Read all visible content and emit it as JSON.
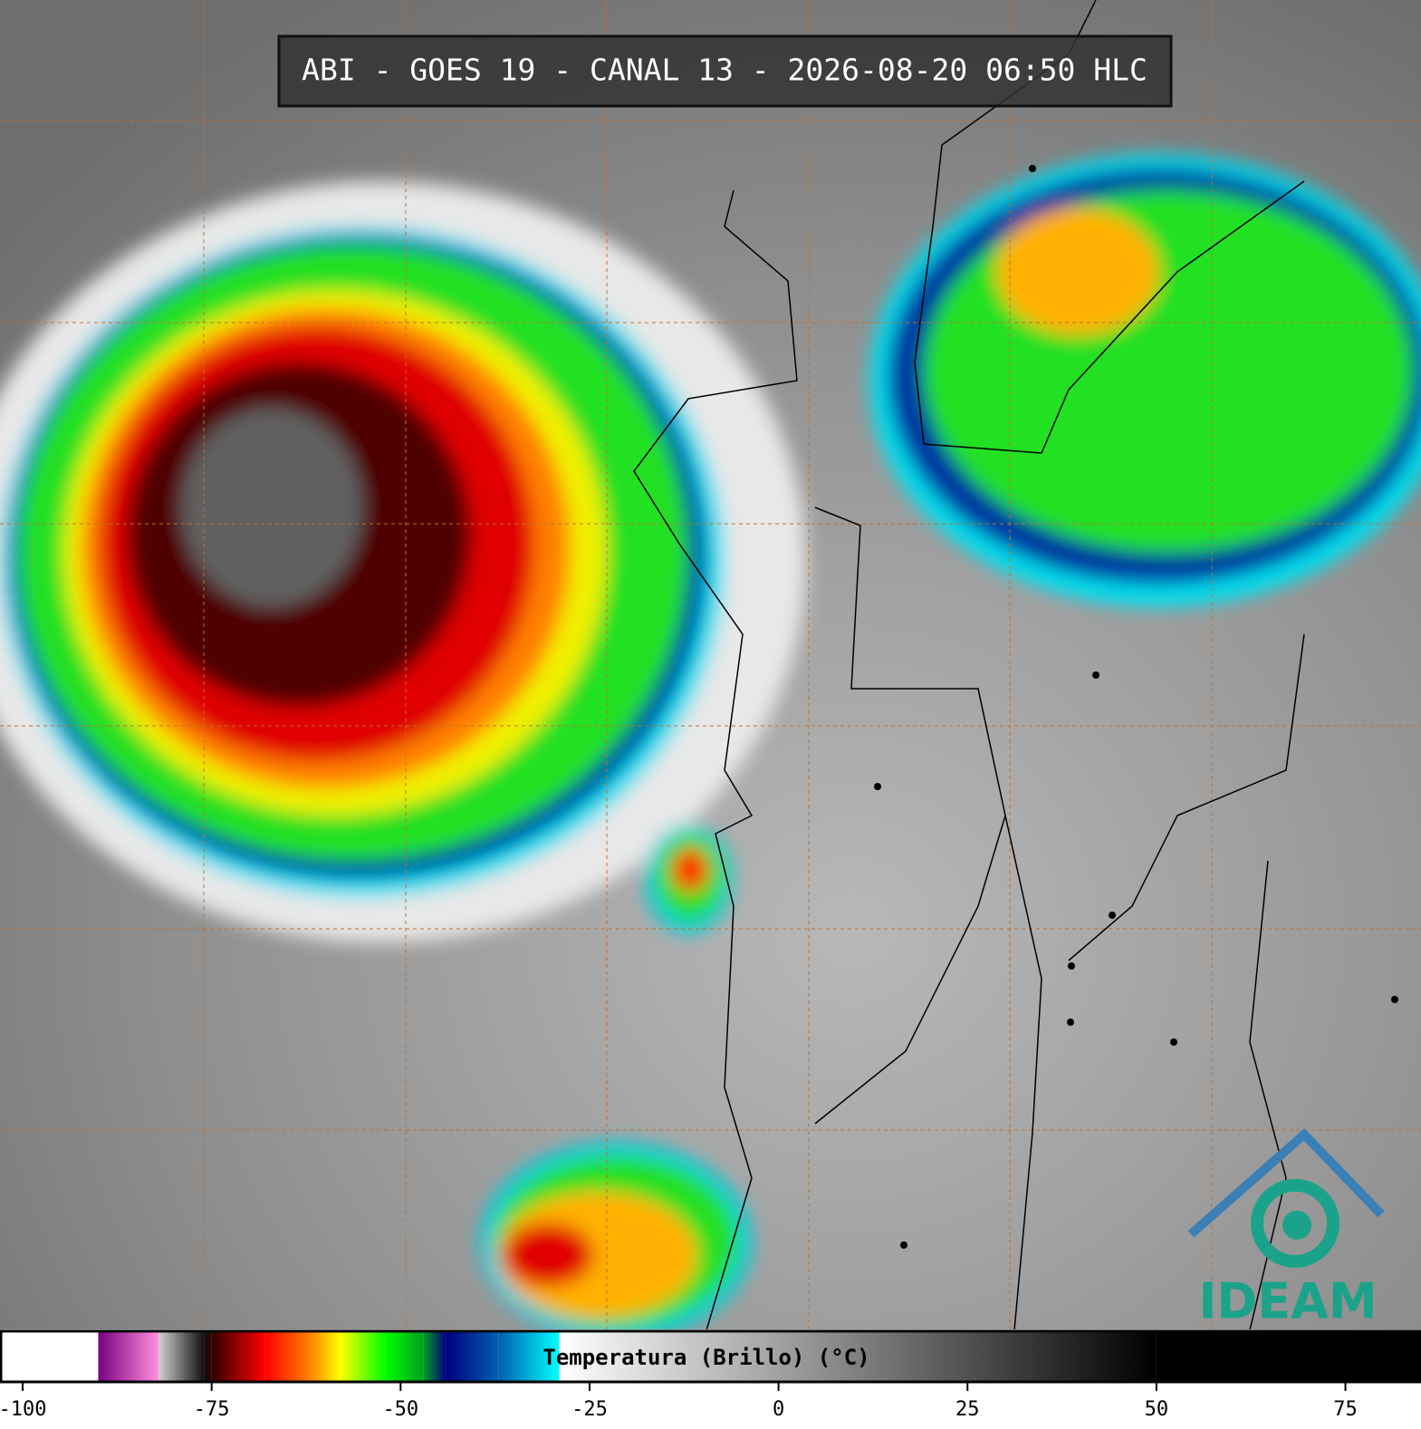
{
  "header": {
    "title": "ABI - GOES 19 - CANAL 13 - 2026-08-20 06:50 HLC"
  },
  "colorbar": {
    "label": "Temperatura (Brillo) (°C)",
    "range": [
      -103,
      85
    ],
    "ticks": [
      -100,
      -75,
      -50,
      -25,
      0,
      25,
      50,
      75
    ],
    "stops": [
      {
        "value": -103,
        "color": "#ffffff"
      },
      {
        "value": -90,
        "color": "#ffffff"
      },
      {
        "value": -90,
        "color": "#7a0080"
      },
      {
        "value": -82,
        "color": "#ff90e0"
      },
      {
        "value": -82,
        "color": "#d0d0d0"
      },
      {
        "value": -76,
        "color": "#101010"
      },
      {
        "value": -75,
        "color": "#300000"
      },
      {
        "value": -68,
        "color": "#ff0000"
      },
      {
        "value": -62,
        "color": "#ff8000"
      },
      {
        "value": -58,
        "color": "#ffff00"
      },
      {
        "value": -52,
        "color": "#00ff00"
      },
      {
        "value": -47,
        "color": "#00a020"
      },
      {
        "value": -44,
        "color": "#000080"
      },
      {
        "value": -37,
        "color": "#0060b0"
      },
      {
        "value": -29,
        "color": "#00ffff"
      },
      {
        "value": -29,
        "color": "#ffffff"
      },
      {
        "value": 50,
        "color": "#000000"
      },
      {
        "value": 85,
        "color": "#000000"
      }
    ]
  },
  "logo": {
    "text": "IDEAM"
  }
}
